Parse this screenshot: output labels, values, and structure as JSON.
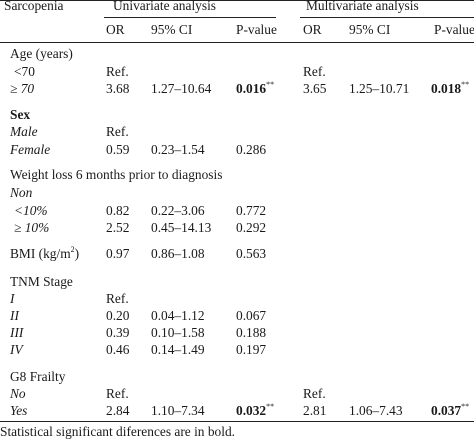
{
  "table": {
    "first_header": "Sarcopenia",
    "groups": [
      "Univariate analysis",
      "Multivariate analysis"
    ],
    "subheaders": [
      "OR",
      "95% CI",
      "P-value"
    ],
    "rows": [
      {
        "label": "Age (years)",
        "kind": "heading"
      },
      {
        "label": "<70",
        "kind": "level",
        "u_or": "Ref.",
        "m_or": "Ref."
      },
      {
        "label": "≥ 70",
        "kind": "level",
        "u_or": "3.68",
        "u_ci": "1.27–10.64",
        "u_p": "0.016",
        "u_star": "**",
        "m_or": "3.65",
        "m_ci": "1.25–10.71",
        "m_p": "0.018",
        "m_star": "**"
      },
      {
        "label": "Sex",
        "kind": "heading-bold"
      },
      {
        "label": "Male",
        "kind": "level",
        "u_or": "Ref."
      },
      {
        "label": "Female",
        "kind": "level",
        "u_or": "0.59",
        "u_ci": "0.23–1.54",
        "u_p": "0.286"
      },
      {
        "label": "Weight loss 6 months prior to diagnosis",
        "kind": "heading"
      },
      {
        "label": "Non",
        "kind": "level"
      },
      {
        "label": "<10%",
        "kind": "level",
        "u_or": "0.82",
        "u_ci": "0.22–3.06",
        "u_p": "0.772"
      },
      {
        "label": "≥ 10%",
        "kind": "level",
        "u_or": "2.52",
        "u_ci": "0.45–14.13",
        "u_p": "0.292"
      },
      {
        "label": "BMI (kg/m",
        "label_sup": "2",
        "label_after": ")",
        "kind": "heading",
        "u_or": "0.97",
        "u_ci": "0.86–1.08",
        "u_p": "0.563"
      },
      {
        "label": "TNM Stage",
        "kind": "heading"
      },
      {
        "label": "I",
        "kind": "level",
        "u_or": "Ref."
      },
      {
        "label": "II",
        "kind": "level",
        "u_or": "0.20",
        "u_ci": "0.04–1.12",
        "u_p": "0.067"
      },
      {
        "label": "III",
        "kind": "level",
        "u_or": "0.39",
        "u_ci": "0.10–1.58",
        "u_p": "0.188"
      },
      {
        "label": "IV",
        "kind": "level",
        "u_or": "0.46",
        "u_ci": "0.14–1.49",
        "u_p": "0.197"
      },
      {
        "label": "G8 Frailty",
        "kind": "heading"
      },
      {
        "label": "No",
        "kind": "level",
        "u_or": "Ref.",
        "m_or": "Ref."
      },
      {
        "label": "Yes",
        "kind": "level",
        "u_or": "2.84",
        "u_ci": "1.10–7.34",
        "u_p": "0.032",
        "u_star": "**",
        "m_or": "2.81",
        "m_ci": "1.06–7.43",
        "m_p": "0.037",
        "m_star": "**"
      }
    ],
    "footnote": "Statistical significant diferences are in bold."
  }
}
